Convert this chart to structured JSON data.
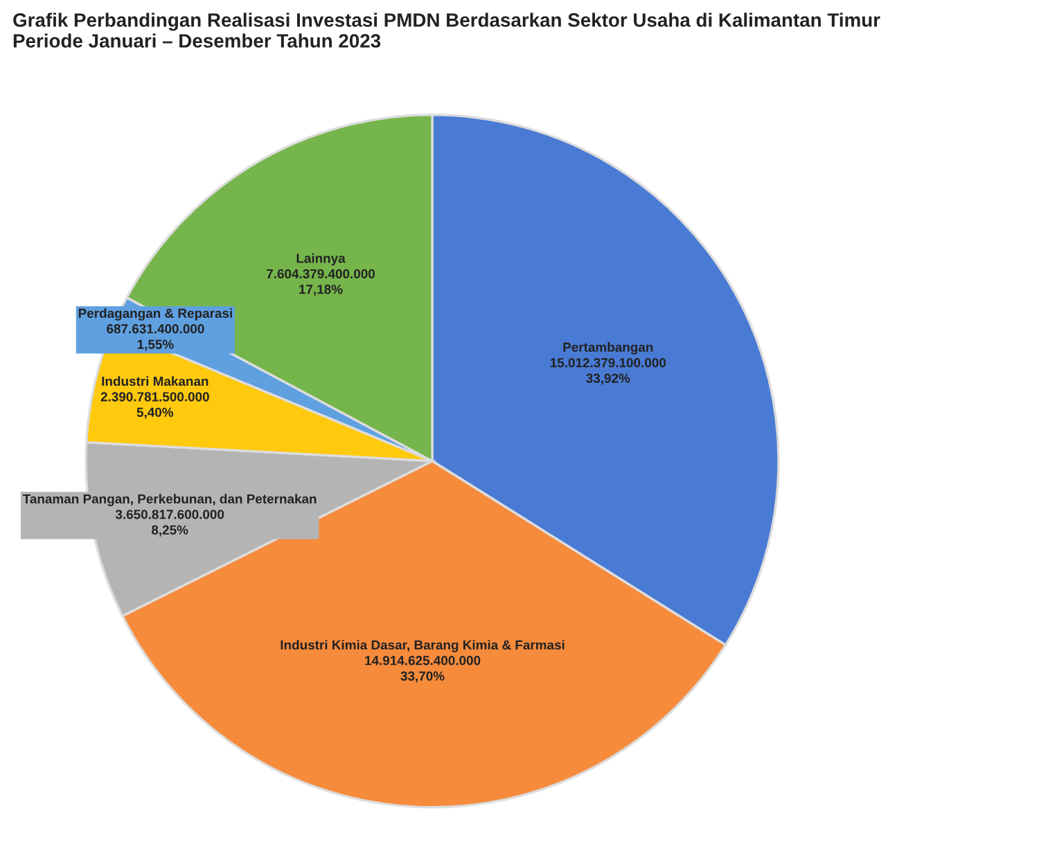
{
  "chart_data": {
    "type": "pie",
    "title": "Grafik Perbandingan Realisasi Investasi PMDN Berdasarkan Sektor Usaha di Kalimantan Timur\nPeriode Januari – Desember Tahun 2023",
    "categories": [
      "Pertambangan",
      "Industri Kimia Dasar, Barang Kimia & Farmasi",
      "Tanaman Pangan, Perkebunan, dan Peternakan",
      "Industri Makanan",
      "Perdagangan & Reparasi",
      "Lainnya"
    ],
    "values": [
      15012379100000,
      14914625400000,
      3650817600000,
      2390781500000,
      687631400000,
      7604379400000
    ],
    "value_labels": [
      "15.012.379.100.000\n33,92%",
      "14.914.625.400.000\n33,70%",
      "3.650.817.600.000\n8,25%",
      "2.390.781.500.000\n5,40%",
      "687.631.400.000\n1,55%",
      "7.604.379.400.000\n17,18%"
    ],
    "colors": [
      "#4a7bd4",
      "#f68b3c",
      "#b4b4b4",
      "#ffc90e",
      "#5fa0e0",
      "#75b54b"
    ],
    "legend": false
  }
}
